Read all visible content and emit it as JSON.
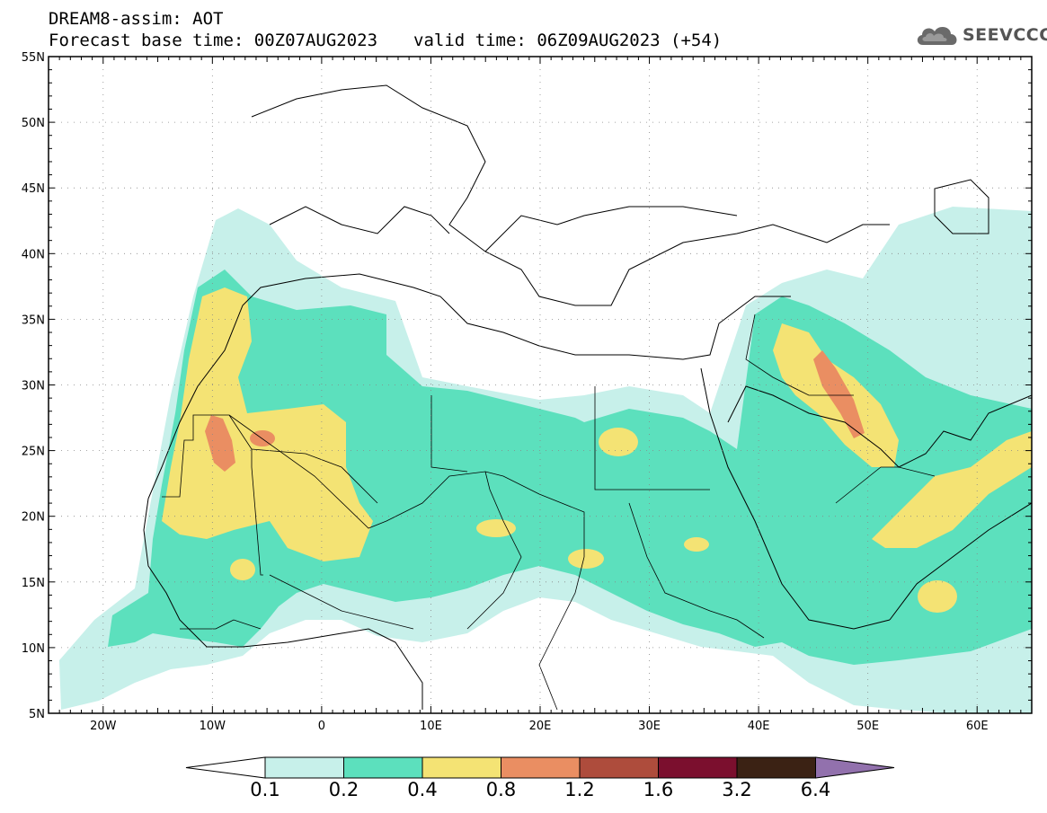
{
  "header": {
    "title": "DREAM8-assim: AOT",
    "base_time": "Forecast base time: 00Z07AUG2023",
    "valid_time": "valid time: 06Z09AUG2023 (+54)"
  },
  "logo": {
    "text": "SEEVCCC",
    "icon": "cloud-icon"
  },
  "map": {
    "lat_range": [
      5,
      55
    ],
    "lon_range": [
      -25,
      65
    ],
    "lat_labels": [
      "5N",
      "10N",
      "15N",
      "20N",
      "25N",
      "30N",
      "35N",
      "40N",
      "45N",
      "50N",
      "55N"
    ],
    "lon_labels": [
      "20W",
      "10W",
      "0",
      "10E",
      "20E",
      "30E",
      "40E",
      "50E",
      "60E"
    ]
  },
  "colorbar": {
    "ticks": [
      "0.1",
      "0.2",
      "0.4",
      "0.8",
      "1.2",
      "1.6",
      "3.2",
      "6.4"
    ],
    "colors": [
      "#c7f0ea",
      "#5ce0bd",
      "#f4e374",
      "#ea8e62",
      "#ae4c3c",
      "#7b0f2e",
      "#3b2214",
      "#9271ad"
    ]
  }
}
